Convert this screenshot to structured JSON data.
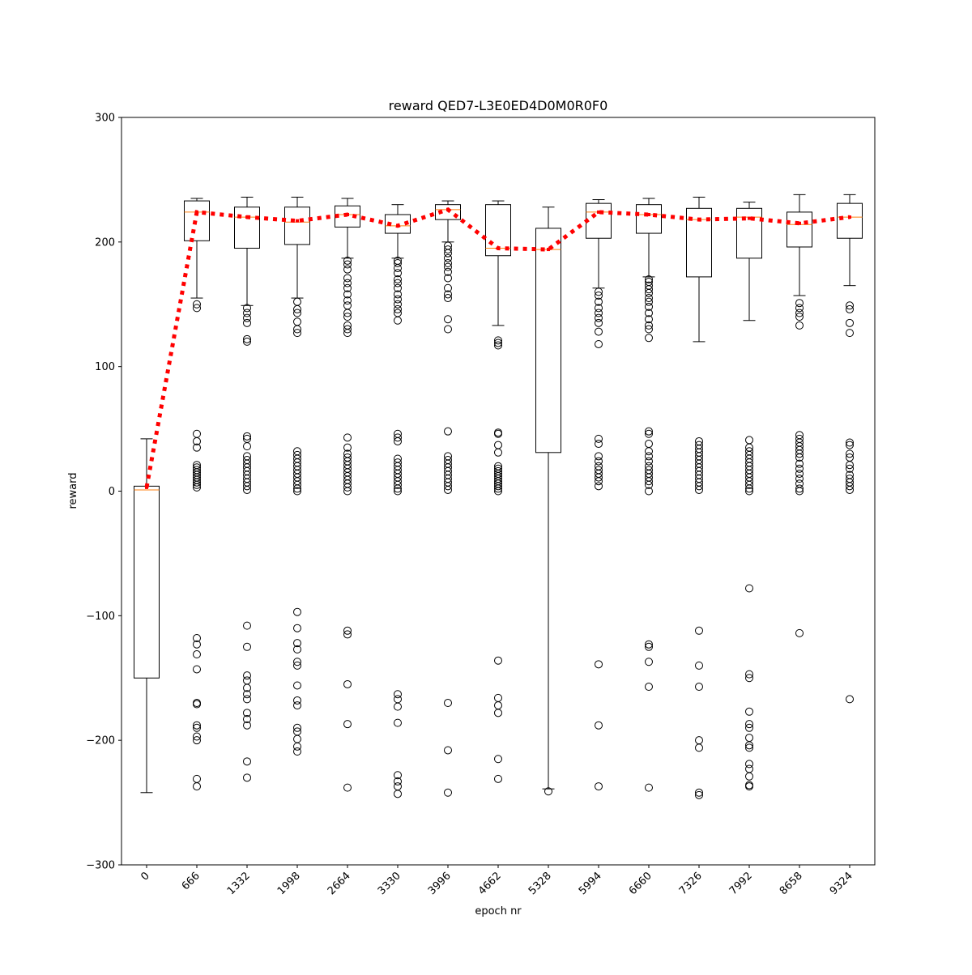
{
  "chart_data": {
    "type": "box",
    "title": "reward QED7-L3E0ED4D0M0R0F0",
    "xlabel": "epoch nr",
    "ylabel": "reward",
    "ylim": [
      -300,
      300
    ],
    "yticks": [
      -300,
      -200,
      -100,
      0,
      100,
      200,
      300
    ],
    "ytick_labels": [
      "−300",
      "−200",
      "−100",
      "0",
      "100",
      "200",
      "300"
    ],
    "grid": false,
    "categories": [
      "0",
      "666",
      "1332",
      "1998",
      "2664",
      "3330",
      "3996",
      "4662",
      "5328",
      "5994",
      "6660",
      "7326",
      "7992",
      "8658",
      "9324"
    ],
    "boxes": [
      {
        "q1": -150,
        "median": 1,
        "q3": 4,
        "whisker_low": -242,
        "whisker_high": 42,
        "outliers": []
      },
      {
        "q1": 201,
        "median": 224,
        "q3": 233,
        "whisker_low": 155,
        "whisker_high": 235,
        "outliers": [
          150,
          147,
          46,
          40,
          35,
          21,
          19,
          17,
          15,
          13,
          11,
          9,
          7,
          5,
          3,
          -118,
          -123,
          -131,
          -143,
          -170,
          -171,
          -188,
          -190,
          -197,
          -200,
          -231,
          -237
        ]
      },
      {
        "q1": 195,
        "median": 220,
        "q3": 228,
        "whisker_low": 149,
        "whisker_high": 236,
        "outliers": [
          147,
          143,
          139,
          135,
          122,
          120,
          44,
          42,
          36,
          28,
          25,
          22,
          19,
          16,
          13,
          10,
          7,
          4,
          1,
          -108,
          -125,
          -148,
          -152,
          -158,
          -163,
          -167,
          -178,
          -183,
          -188,
          -217,
          -230
        ]
      },
      {
        "q1": 198,
        "median": 216,
        "q3": 228,
        "whisker_low": 155,
        "whisker_high": 236,
        "outliers": [
          152,
          146,
          143,
          136,
          130,
          127,
          32,
          29,
          26,
          23,
          20,
          17,
          14,
          11,
          8,
          5,
          2,
          0,
          -97,
          -110,
          -122,
          -127,
          -137,
          -140,
          -156,
          -168,
          -172,
          -190,
          -193,
          -199,
          -205,
          -209
        ]
      },
      {
        "q1": 212,
        "median": 222,
        "q3": 229,
        "whisker_low": 187,
        "whisker_high": 235,
        "outliers": [
          185,
          182,
          178,
          171,
          167,
          163,
          158,
          153,
          149,
          143,
          140,
          133,
          130,
          127,
          43,
          35,
          30,
          27,
          24,
          21,
          18,
          15,
          12,
          9,
          6,
          3,
          0,
          -112,
          -115,
          -155,
          -187,
          -238
        ]
      },
      {
        "q1": 207,
        "median": 213,
        "q3": 222,
        "whisker_low": 187,
        "whisker_high": 230,
        "outliers": [
          185,
          183,
          179,
          175,
          170,
          167,
          163,
          158,
          154,
          150,
          146,
          143,
          137,
          46,
          43,
          40,
          26,
          23,
          20,
          17,
          14,
          11,
          8,
          5,
          2,
          0,
          -163,
          -167,
          -173,
          -186,
          -228,
          -233,
          -237,
          -243
        ]
      },
      {
        "q1": 218,
        "median": 226,
        "q3": 230,
        "whisker_low": 200,
        "whisker_high": 233,
        "outliers": [
          197,
          194,
          191,
          187,
          183,
          180,
          176,
          171,
          163,
          158,
          155,
          138,
          130,
          48,
          28,
          25,
          22,
          19,
          16,
          13,
          10,
          7,
          4,
          1,
          -170,
          -208,
          -242
        ]
      },
      {
        "q1": 189,
        "median": 195,
        "q3": 230,
        "whisker_low": 133,
        "whisker_high": 233,
        "outliers": [
          121,
          119,
          117,
          47,
          46,
          37,
          31,
          20,
          18,
          16,
          14,
          12,
          10,
          8,
          6,
          4,
          2,
          0,
          -136,
          -166,
          -172,
          -178,
          -215,
          -231
        ]
      },
      {
        "q1": 31,
        "median": 194,
        "q3": 211,
        "whisker_low": -239,
        "whisker_high": 228,
        "outliers": [
          -241
        ]
      },
      {
        "q1": 203,
        "median": 224,
        "q3": 231,
        "whisker_low": 163,
        "whisker_high": 234,
        "outliers": [
          160,
          157,
          152,
          147,
          143,
          139,
          135,
          128,
          118,
          42,
          38,
          28,
          24,
          20,
          17,
          14,
          11,
          8,
          4,
          -139,
          -188,
          -237
        ]
      },
      {
        "q1": 207,
        "median": 222,
        "q3": 230,
        "whisker_low": 172,
        "whisker_high": 235,
        "outliers": [
          170,
          168,
          165,
          162,
          159,
          155,
          152,
          148,
          143,
          138,
          133,
          130,
          123,
          48,
          46,
          38,
          32,
          28,
          24,
          20,
          17,
          14,
          11,
          8,
          5,
          0,
          -123,
          -125,
          -137,
          -157,
          -238
        ]
      },
      {
        "q1": 172,
        "median": 218,
        "q3": 227,
        "whisker_low": 120,
        "whisker_high": 236,
        "outliers": [
          40,
          37,
          34,
          31,
          28,
          25,
          22,
          19,
          16,
          13,
          10,
          7,
          4,
          1,
          -112,
          -140,
          -157,
          -200,
          -206,
          -242,
          -244
        ]
      },
      {
        "q1": 187,
        "median": 220,
        "q3": 227,
        "whisker_low": 137,
        "whisker_high": 232,
        "outliers": [
          41,
          35,
          32,
          29,
          26,
          23,
          20,
          17,
          14,
          11,
          8,
          5,
          2,
          0,
          -78,
          -147,
          -150,
          -177,
          -187,
          -190,
          -198,
          -204,
          -206,
          -219,
          -223,
          -229,
          -236,
          -237
        ]
      },
      {
        "q1": 196,
        "median": 214,
        "q3": 224,
        "whisker_low": 157,
        "whisker_high": 238,
        "outliers": [
          151,
          147,
          143,
          140,
          133,
          45,
          42,
          39,
          36,
          33,
          30,
          27,
          22,
          18,
          14,
          10,
          6,
          2,
          0,
          -114
        ]
      },
      {
        "q1": 203,
        "median": 220,
        "q3": 231,
        "whisker_low": 165,
        "whisker_high": 238,
        "outliers": [
          149,
          146,
          135,
          127,
          39,
          37,
          30,
          27,
          21,
          18,
          13,
          10,
          7,
          4,
          1,
          -167
        ]
      }
    ],
    "mean_line": {
      "style": "dotted",
      "color": "#ff0000",
      "values": [
        3,
        224,
        220,
        217,
        222,
        213,
        226,
        195,
        194,
        224,
        222,
        218,
        219,
        215,
        220
      ]
    },
    "colors": {
      "box": "#000000",
      "median": "#ff7f0e",
      "mean": "#ff0000"
    }
  }
}
